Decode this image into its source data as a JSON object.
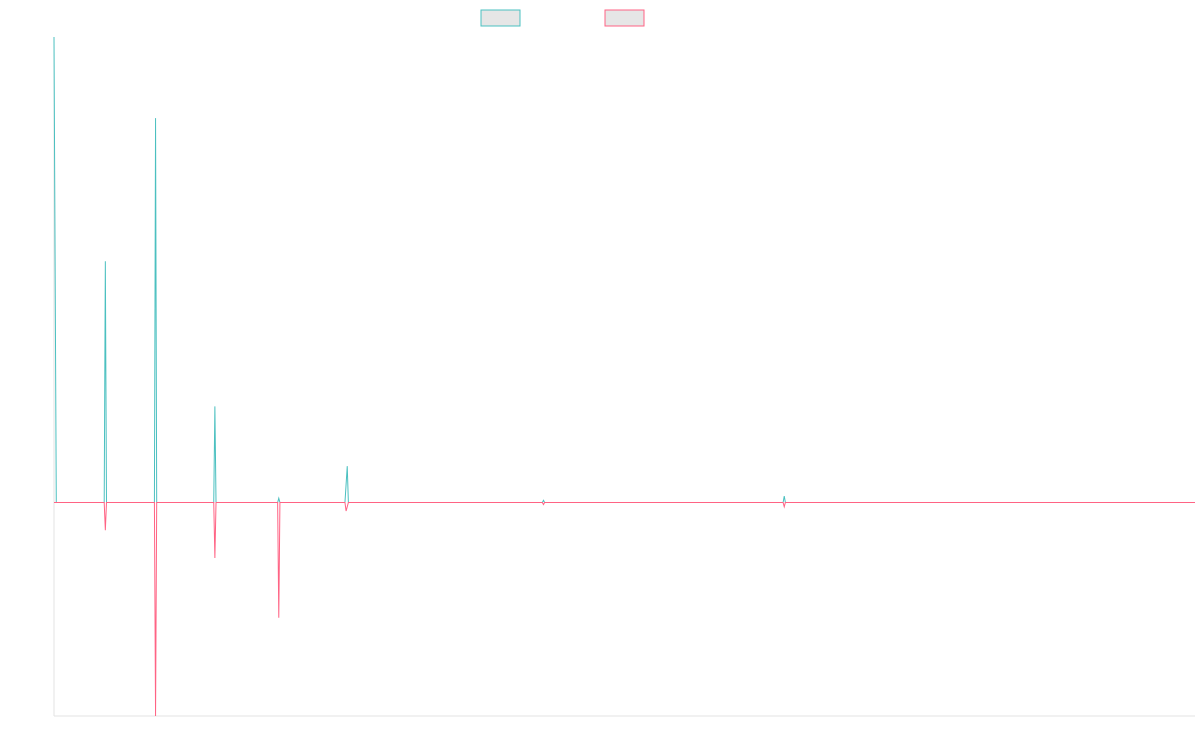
{
  "chart_data": {
    "type": "line",
    "title": "",
    "xlabel": "",
    "ylabel": "",
    "xlim": [
      0,
      1000
    ],
    "ylim": [
      -100,
      218
    ],
    "grid": false,
    "legend": {
      "position": "top-center"
    },
    "series": [
      {
        "color": "#4bc0c0",
        "points": [
          [
            0,
            218
          ],
          [
            2,
            0
          ],
          [
            44,
            0
          ],
          [
            45,
            113
          ],
          [
            46,
            0
          ],
          [
            51,
            0
          ],
          [
            88,
            0
          ],
          [
            89,
            180
          ],
          [
            90,
            0
          ],
          [
            140,
            0
          ],
          [
            141,
            45
          ],
          [
            142,
            0
          ],
          [
            196,
            0
          ],
          [
            197,
            2
          ],
          [
            198,
            0
          ],
          [
            255,
            0
          ],
          [
            257,
            17
          ],
          [
            258,
            0
          ],
          [
            428,
            0
          ],
          [
            429,
            1
          ],
          [
            430,
            0
          ],
          [
            639,
            0
          ],
          [
            640,
            3
          ],
          [
            641,
            0
          ],
          [
            1000,
            0
          ]
        ]
      },
      {
        "color": "#ff6384",
        "points": [
          [
            0,
            0
          ],
          [
            44,
            0
          ],
          [
            45,
            -13
          ],
          [
            46,
            0
          ],
          [
            51,
            0
          ],
          [
            88,
            0
          ],
          [
            89,
            -100
          ],
          [
            90,
            0
          ],
          [
            140,
            0
          ],
          [
            141,
            -26
          ],
          [
            142,
            0
          ],
          [
            196,
            0
          ],
          [
            197,
            -54
          ],
          [
            198,
            0
          ],
          [
            255,
            0
          ],
          [
            256,
            -4
          ],
          [
            258,
            0
          ],
          [
            428,
            0
          ],
          [
            429,
            -1
          ],
          [
            430,
            0
          ],
          [
            639,
            0
          ],
          [
            640,
            -2
          ],
          [
            641,
            0
          ],
          [
            1000,
            0
          ]
        ]
      }
    ]
  }
}
